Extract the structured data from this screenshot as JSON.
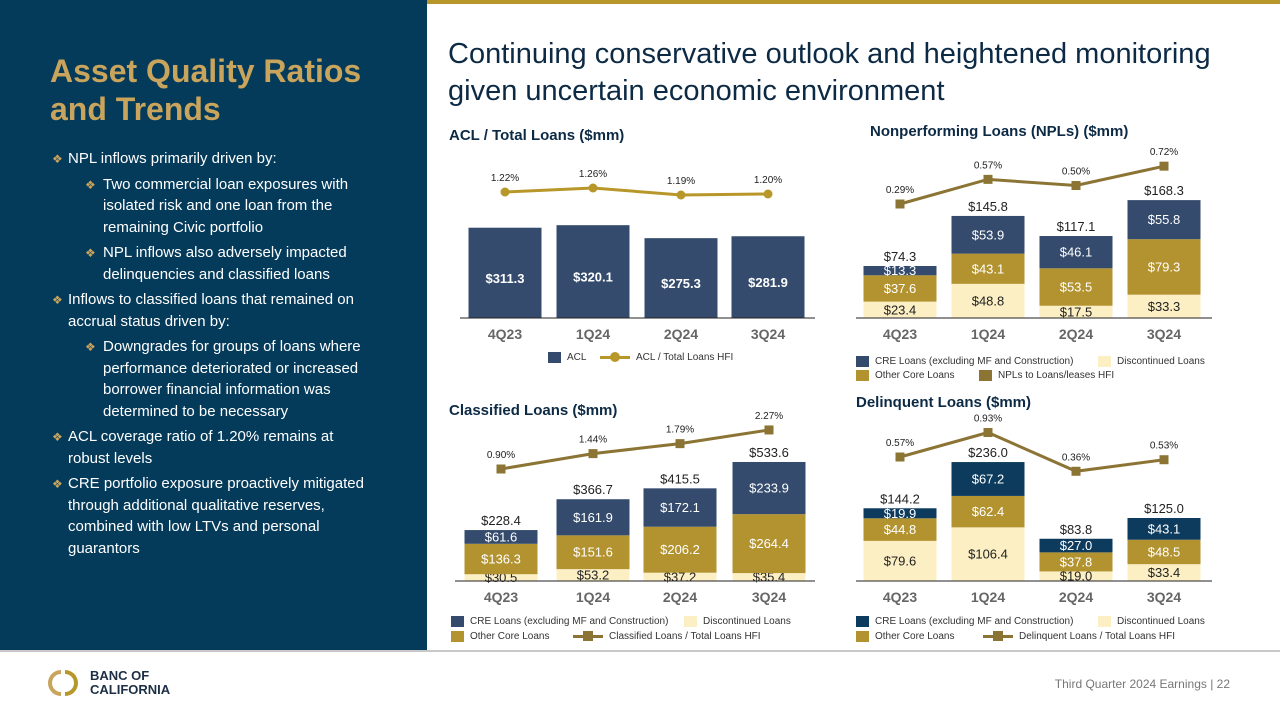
{
  "slide": {
    "title": "Asset Quality Ratios and Trends",
    "headline": "Continuing conservative outlook and heightened monitoring given uncertain economic environment",
    "footer": "Third Quarter 2024 Earnings |  22",
    "logo_text": "BANC OF CALIFORNIA"
  },
  "bullets": [
    {
      "level": 1,
      "text": "NPL inflows primarily driven by:"
    },
    {
      "level": 2,
      "text": "Two commercial loan exposures with isolated risk and one loan from the remaining Civic portfolio"
    },
    {
      "level": 2,
      "text": "NPL inflows also adversely impacted delinquencies and classified loans"
    },
    {
      "level": 1,
      "text": "Inflows to classified loans that remained on accrual status driven by:"
    },
    {
      "level": 2,
      "text": "Downgrades for groups of loans where performance deteriorated or increased borrower financial information was determined to be necessary"
    },
    {
      "level": 1,
      "text": "ACL coverage ratio of 1.20% remains at robust levels"
    },
    {
      "level": 1,
      "text": "CRE portfolio exposure proactively mitigated through additional qualitative reserves, combined with low LTVs and personal guarantors"
    }
  ],
  "colors": {
    "panel": "#043a5a",
    "gold_title": "#c9a45c",
    "navy": "#344b6d",
    "deep_navy": "#0d3b5e",
    "gold": "#b3932f",
    "cream": "#fcefc4",
    "line_olive": "#8b7434",
    "line_gold": "#b8972a"
  },
  "chart_data": [
    {
      "type": "bar",
      "title": "ACL / Total Loans ($mm)",
      "categories": [
        "4Q23",
        "1Q24",
        "2Q24",
        "3Q24"
      ],
      "series": [
        {
          "name": "ACL",
          "values": [
            311.3,
            320.1,
            275.3,
            281.9
          ],
          "labels": [
            "$311.3",
            "$320.1",
            "$275.3",
            "$281.9"
          ],
          "color": "#344b6d"
        }
      ],
      "line": {
        "name": "ACL / Total Loans HFI",
        "values": [
          1.22,
          1.26,
          1.19,
          1.2
        ],
        "labels": [
          "1.22%",
          "1.26%",
          "1.19%",
          "1.20%"
        ],
        "color": "#b8972a",
        "marker": "circle"
      },
      "legend": [
        "ACL",
        "ACL / Total Loans HFI"
      ]
    },
    {
      "type": "bar",
      "title": "Nonperforming Loans (NPLs) ($mm)",
      "stacked": true,
      "categories": [
        "4Q23",
        "1Q24",
        "2Q24",
        "3Q24"
      ],
      "series": [
        {
          "name": "Discontinued Loans",
          "values": [
            23.4,
            48.8,
            17.5,
            33.3
          ],
          "labels": [
            "$23.4",
            "$48.8",
            "$17.5",
            "$33.3"
          ],
          "color": "#fcefc4"
        },
        {
          "name": "Other Core Loans",
          "values": [
            37.6,
            43.1,
            53.5,
            79.3
          ],
          "labels": [
            "$37.6",
            "$43.1",
            "$53.5",
            "$79.3"
          ],
          "color": "#b3932f"
        },
        {
          "name": "CRE  Loans (excluding MF and Construction)",
          "values": [
            13.3,
            53.9,
            46.1,
            55.8
          ],
          "labels": [
            "$13.3",
            "$53.9",
            "$46.1",
            "$55.8"
          ],
          "color": "#344b6d"
        }
      ],
      "totals": [
        "$74.3",
        "$145.8",
        "$117.1",
        "$168.3"
      ],
      "line": {
        "name": "NPLs to Loans/leases HFI",
        "values": [
          0.29,
          0.57,
          0.5,
          0.72
        ],
        "labels": [
          "0.29%",
          "0.57%",
          "0.50%",
          "0.72%"
        ],
        "color": "#8b7434",
        "marker": "square"
      }
    },
    {
      "type": "bar",
      "title": "Classified Loans ($mm)",
      "stacked": true,
      "categories": [
        "4Q23",
        "1Q24",
        "2Q24",
        "3Q24"
      ],
      "series": [
        {
          "name": "Discontinued Loans",
          "values": [
            30.5,
            53.2,
            37.2,
            35.4
          ],
          "labels": [
            "$30.5",
            "$53.2",
            "$37.2",
            "$35.4"
          ],
          "color": "#fcefc4"
        },
        {
          "name": "Other Core Loans",
          "values": [
            136.3,
            151.6,
            206.2,
            264.4
          ],
          "labels": [
            "$136.3",
            "$151.6",
            "$206.2",
            "$264.4"
          ],
          "color": "#b3932f"
        },
        {
          "name": "CRE  Loans (excluding MF and Construction)",
          "values": [
            61.6,
            161.9,
            172.1,
            233.9
          ],
          "labels": [
            "$61.6",
            "$161.9",
            "$172.1",
            "$233.9"
          ],
          "color": "#344b6d"
        }
      ],
      "totals": [
        "$228.4",
        "$366.7",
        "$415.5",
        "$533.6"
      ],
      "line": {
        "name": "Classified Loans / Total Loans HFI",
        "values": [
          0.9,
          1.44,
          1.79,
          2.27
        ],
        "labels": [
          "0.90%",
          "1.44%",
          "1.79%",
          "2.27%"
        ],
        "color": "#8b7434",
        "marker": "square"
      }
    },
    {
      "type": "bar",
      "title": "Delinquent Loans ($mm)",
      "stacked": true,
      "categories": [
        "4Q23",
        "1Q24",
        "2Q24",
        "3Q24"
      ],
      "series": [
        {
          "name": "Discontinued Loans",
          "values": [
            79.6,
            106.4,
            19.0,
            33.4
          ],
          "labels": [
            "$79.6",
            "$106.4",
            "$19.0",
            "$33.4"
          ],
          "color": "#fcefc4"
        },
        {
          "name": "Other Core Loans",
          "values": [
            44.8,
            62.4,
            37.8,
            48.5
          ],
          "labels": [
            "$44.8",
            "$62.4",
            "$37.8",
            "$48.5"
          ],
          "color": "#b3932f"
        },
        {
          "name": "CRE  Loans (excluding MF and Construction)",
          "values": [
            19.9,
            67.2,
            27.0,
            43.1
          ],
          "labels": [
            "$19.9",
            "$67.2",
            "$27.0",
            "$43.1"
          ],
          "color": "#0d3b5e"
        }
      ],
      "totals": [
        "$144.2",
        "$236.0",
        "$83.8",
        "$125.0"
      ],
      "line": {
        "name": "Delinquent Loans / Total Loans HFI",
        "values": [
          0.57,
          0.93,
          0.36,
          0.53
        ],
        "labels": [
          "0.57%",
          "0.93%",
          "0.36%",
          "0.53%"
        ],
        "color": "#8b7434",
        "marker": "square"
      }
    }
  ]
}
